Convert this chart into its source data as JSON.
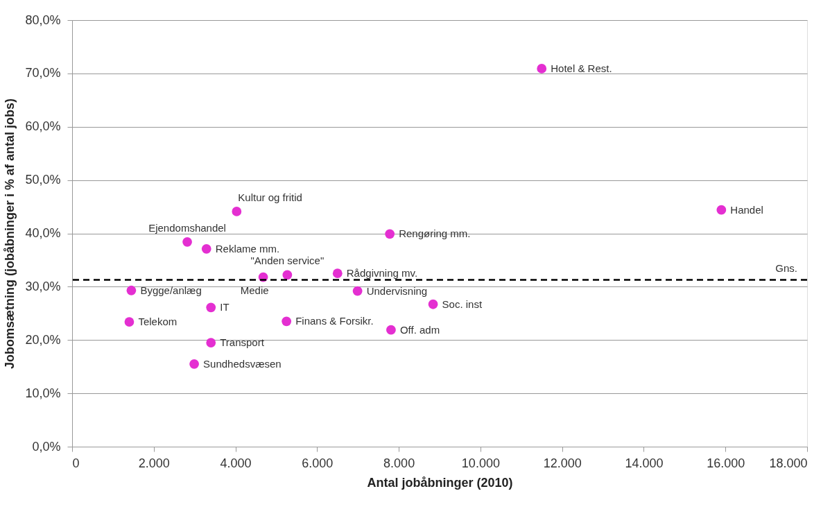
{
  "chart_data": {
    "type": "scatter",
    "xlabel": "Antal jobåbninger (2010)",
    "ylabel": "Jobomsætning (jobåbninger i % af antal jobs)",
    "series": [
      {
        "color": "#e42fd1",
        "x": [
          11500,
          15900,
          4030,
          7780,
          2820,
          3290,
          4680,
          5270,
          6500,
          1450,
          6990,
          3400,
          8840,
          1400,
          5250,
          7810,
          3400,
          2990
        ],
        "values": [
          70.9,
          44.4,
          44.1,
          39.9,
          38.4,
          37.1,
          31.8,
          32.2,
          32.5,
          29.3,
          29.2,
          26.1,
          26.7,
          23.4,
          23.5,
          21.9,
          19.5,
          15.5
        ]
      }
    ],
    "annotations": [
      {
        "text": "Hotel & Rest.",
        "x": 11500,
        "y": 70.9
      },
      {
        "text": "Handel",
        "x": 15900,
        "y": 44.4
      },
      {
        "text": "Kultur og fritid",
        "x": 4030,
        "y": 44.1
      },
      {
        "text": "Rengøring mm.",
        "x": 7780,
        "y": 39.9
      },
      {
        "text": "Ejendomshandel",
        "x": 2820,
        "y": 38.4
      },
      {
        "text": "Reklame mm.",
        "x": 3290,
        "y": 37.1
      },
      {
        "text": "Medie",
        "x": 4680,
        "y": 31.8
      },
      {
        "text": "\"Anden service\"",
        "x": 5270,
        "y": 32.2
      },
      {
        "text": "Rådgivning mv.",
        "x": 6500,
        "y": 32.5
      },
      {
        "text": "Bygge/anlæg",
        "x": 1450,
        "y": 29.3
      },
      {
        "text": "Undervisning",
        "x": 6990,
        "y": 29.2
      },
      {
        "text": "IT",
        "x": 3400,
        "y": 26.1
      },
      {
        "text": "Soc. inst",
        "x": 8840,
        "y": 26.7
      },
      {
        "text": "Telekom",
        "x": 1400,
        "y": 23.4
      },
      {
        "text": "Finans & Forsikr.",
        "x": 5250,
        "y": 23.5
      },
      {
        "text": "Off. adm",
        "x": 7810,
        "y": 21.9
      },
      {
        "text": "Transport",
        "x": 3400,
        "y": 19.5
      },
      {
        "text": "Sundhedsvæsen",
        "x": 2990,
        "y": 15.5
      }
    ],
    "ref_lines": [
      {
        "axis": "y",
        "value": 31.3,
        "label": "Gns.",
        "color": "#000000",
        "line_style": "dashed"
      }
    ],
    "xlim": [
      0,
      18000
    ],
    "xticks": [
      0,
      {
        "value": 2000,
        "label": "2.000"
      },
      {
        "value": 4000,
        "label": "4.000"
      },
      {
        "value": 6000,
        "label": "6.000"
      },
      {
        "value": 8000,
        "label": "8.000"
      },
      {
        "value": 10000,
        "label": "10.000"
      },
      {
        "value": 12000,
        "label": "12.000"
      },
      {
        "value": 14000,
        "label": "14.000"
      },
      {
        "value": 16000,
        "label": "16.000"
      },
      {
        "value": 18000,
        "label": "18.000"
      }
    ],
    "ylim": [
      0,
      80
    ],
    "yticks": [
      {
        "value": 0,
        "label": "0,0%"
      },
      {
        "value": 10,
        "label": "10,0%"
      },
      {
        "value": 20,
        "label": "20,0%"
      },
      {
        "value": 30,
        "label": "30,0%"
      },
      {
        "value": 40,
        "label": "40,0%"
      },
      {
        "value": 50,
        "label": "50,0%"
      },
      {
        "value": 60,
        "label": "60,0%"
      },
      {
        "value": 70,
        "label": "70,0%"
      },
      {
        "value": 80,
        "label": "80,0%"
      }
    ],
    "grid": "y",
    "legend": false,
    "marker": "circle"
  }
}
